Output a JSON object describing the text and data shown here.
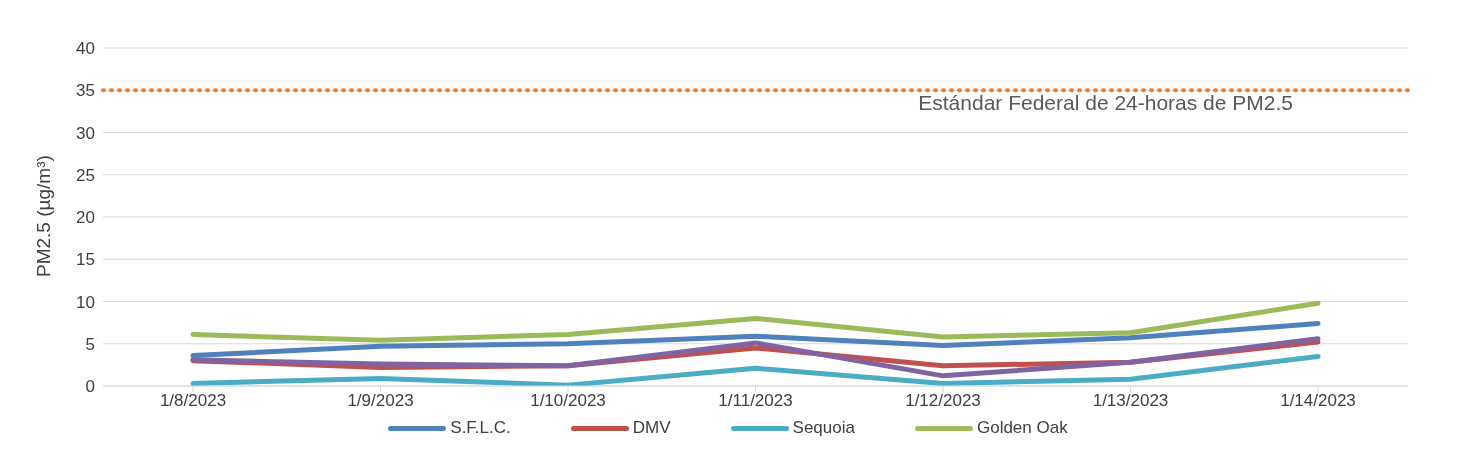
{
  "chart_data": {
    "type": "line",
    "ylabel": "PM2.5 (µg/m³)",
    "categories": [
      "1/8/2023",
      "1/9/2023",
      "1/10/2023",
      "1/11/2023",
      "1/12/2023",
      "1/13/2023",
      "1/14/2023"
    ],
    "series": [
      {
        "name": "S.F.L.C.",
        "color": "#4f81bd",
        "values": [
          3.6,
          4.7,
          5.0,
          5.9,
          4.8,
          5.7,
          7.4
        ]
      },
      {
        "name": "DMV",
        "color": "#c0504d",
        "values": [
          3.0,
          2.2,
          2.4,
          4.5,
          2.4,
          2.8,
          5.2
        ]
      },
      {
        "color": "#8064a2",
        "values": [
          3.1,
          2.6,
          2.4,
          5.1,
          1.2,
          2.8,
          5.6
        ]
      },
      {
        "name": "Sequoia",
        "color": "#4bacc6",
        "values": [
          0.3,
          0.9,
          0.1,
          2.1,
          0.3,
          0.8,
          3.5
        ]
      },
      {
        "name": "Golden Oak",
        "color": "#9bbb59",
        "values": [
          6.1,
          5.4,
          6.1,
          8.0,
          5.8,
          6.3,
          9.8
        ]
      }
    ],
    "ylim": [
      0,
      40
    ],
    "yticks": [
      0,
      5,
      10,
      15,
      20,
      25,
      30,
      35,
      40
    ],
    "grid": "y",
    "legend": "bottom",
    "marker": "none",
    "line_style": "solid",
    "ref_lines": [
      {
        "axis": "y",
        "value": 35,
        "label": "Estándar Federal de 24-horas de PM2.5",
        "color": "#ed7d31",
        "line_style": "dotted"
      }
    ]
  }
}
